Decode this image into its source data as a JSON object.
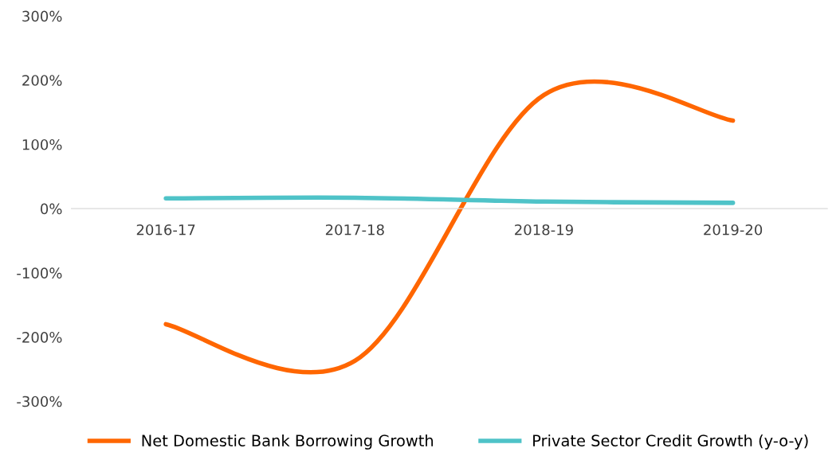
{
  "chart_data": {
    "type": "line",
    "categories": [
      "2016-17",
      "2017-18",
      "2018-19",
      "2019-20"
    ],
    "series": [
      {
        "name": "Net Domestic Bank Borrowing Growth",
        "color": "#ff6600",
        "values": [
          -180,
          -237,
          177,
          137
        ]
      },
      {
        "name": "Private Sector Credit Growth (y-o-y)",
        "color": "#4fc3c8",
        "values": [
          16,
          17,
          11,
          9
        ]
      }
    ],
    "ylim": [
      -300,
      300
    ],
    "yticks": [
      {
        "value": -300,
        "label": "-300%"
      },
      {
        "value": -200,
        "label": "-200%"
      },
      {
        "value": -100,
        "label": "-100%"
      },
      {
        "value": 0,
        "label": "0%"
      },
      {
        "value": 100,
        "label": "100%"
      },
      {
        "value": 200,
        "label": "200%"
      },
      {
        "value": 300,
        "label": "300%"
      }
    ],
    "grid": false,
    "legend": "bottom",
    "marker": "none",
    "line_style": "solid"
  }
}
